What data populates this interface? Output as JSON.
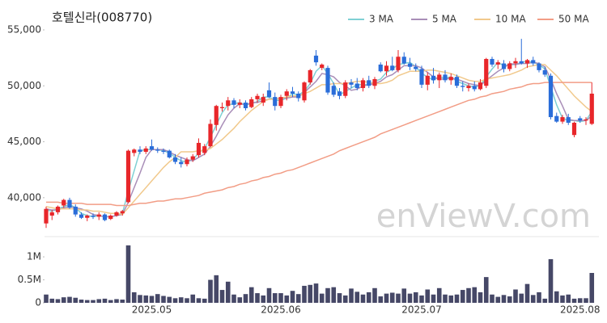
{
  "chart_data": [
    {
      "type": "candlestick",
      "title": "호텔신라(008770)",
      "watermark": "enViewV.com",
      "up_color": "#e8262a",
      "down_color": "#2a6dd9",
      "ylim": [
        37100,
        55650
      ],
      "yticks": [
        {
          "value": 40000,
          "label": "40,000"
        },
        {
          "value": 45000,
          "label": "45,000"
        },
        {
          "value": 50000,
          "label": "50,000"
        },
        {
          "value": 55000,
          "label": "55,000"
        }
      ],
      "open": [
        37700,
        38400,
        38700,
        39300,
        39800,
        39200,
        38500,
        38200,
        38400,
        38300,
        38500,
        38100,
        38400,
        38600,
        39600,
        44000,
        44300,
        44100,
        44600,
        44300,
        44200,
        44200,
        43600,
        43200,
        43000,
        43400,
        43800,
        44000,
        44600,
        46500,
        48000,
        48200,
        48700,
        48300,
        48500,
        48100,
        48800,
        48500,
        49600,
        49000,
        48200,
        49100,
        49500,
        49300,
        48700,
        50300,
        52700,
        51600,
        51600,
        50000,
        49500,
        49100,
        50300,
        50200,
        49800,
        50500,
        50000,
        51900,
        51300,
        51800,
        51400,
        52600,
        52000,
        51700,
        51500,
        50100,
        50900,
        50500,
        51000,
        50500,
        50800,
        50000,
        49800,
        50000,
        49700,
        50000,
        52400,
        51900,
        52000,
        51500,
        52000,
        52200,
        52000,
        52300,
        52000,
        51400,
        50900,
        47300,
        46800,
        47200,
        45600,
        47100,
        46900,
        46600
      ],
      "high": [
        39200,
        38900,
        39300,
        39900,
        40000,
        39400,
        38700,
        38500,
        38600,
        38700,
        38600,
        38500,
        38800,
        38900,
        44300,
        44400,
        44600,
        44600,
        45200,
        44500,
        44400,
        44300,
        43900,
        43600,
        43600,
        43900,
        45300,
        44800,
        47000,
        48300,
        48500,
        49000,
        48900,
        48800,
        48700,
        49000,
        49300,
        49300,
        50300,
        49400,
        49200,
        49700,
        49900,
        49500,
        50400,
        51500,
        53200,
        52000,
        51800,
        50300,
        49800,
        50500,
        50600,
        50700,
        50700,
        50900,
        50800,
        52100,
        52200,
        52600,
        53200,
        53000,
        52500,
        52000,
        51800,
        51200,
        51600,
        51200,
        51400,
        51100,
        51000,
        50400,
        50200,
        50400,
        50600,
        52500,
        52600,
        52300,
        52300,
        52200,
        52500,
        54200,
        52400,
        52600,
        52100,
        51700,
        51100,
        47600,
        47400,
        47500,
        46800,
        47300,
        47200,
        50300
      ],
      "low": [
        37300,
        38000,
        38500,
        39100,
        39000,
        38300,
        38100,
        37900,
        38100,
        38000,
        37900,
        38000,
        38300,
        38400,
        39500,
        43700,
        43900,
        43900,
        44200,
        44000,
        43900,
        43500,
        43000,
        42700,
        42800,
        43200,
        43600,
        43800,
        44500,
        46000,
        47700,
        47800,
        48000,
        48000,
        47800,
        48000,
        48500,
        48200,
        48900,
        47800,
        48000,
        48700,
        49000,
        48600,
        48500,
        50100,
        51800,
        51400,
        49200,
        49000,
        48800,
        48900,
        49800,
        49600,
        49500,
        49800,
        49700,
        51200,
        50900,
        51300,
        51200,
        51900,
        51400,
        51300,
        49800,
        49600,
        50200,
        49800,
        50300,
        50100,
        49800,
        49500,
        49500,
        49500,
        49600,
        49800,
        51700,
        51500,
        51200,
        51300,
        51600,
        51900,
        51600,
        51800,
        51200,
        50800,
        47000,
        46700,
        46600,
        46500,
        45400,
        46700,
        46500,
        46500
      ],
      "close": [
        39000,
        38700,
        39200,
        39800,
        39100,
        38500,
        38200,
        38400,
        38300,
        38500,
        38000,
        38400,
        38700,
        38800,
        44200,
        44300,
        44100,
        44400,
        44300,
        44200,
        44100,
        43600,
        43200,
        43000,
        43400,
        43700,
        44900,
        44600,
        46600,
        48200,
        48100,
        48700,
        48300,
        48500,
        48000,
        48800,
        49100,
        49000,
        49000,
        48200,
        49000,
        49500,
        49300,
        48900,
        50300,
        51400,
        52100,
        51900,
        49400,
        49200,
        49100,
        50300,
        50100,
        49800,
        50500,
        50000,
        50600,
        51300,
        51800,
        51400,
        52600,
        52000,
        51700,
        51500,
        50100,
        50900,
        50500,
        51000,
        50500,
        50800,
        50000,
        49900,
        50000,
        49700,
        50300,
        52400,
        51900,
        52100,
        51500,
        52000,
        52200,
        52000,
        52300,
        52000,
        51400,
        51000,
        47200,
        46800,
        47200,
        46700,
        46700,
        46900,
        47000,
        49300
      ],
      "series": [
        {
          "name": "3 MA",
          "color": "#7fd0d4",
          "values": [
            38900,
            38800,
            39000,
            39200,
            39400,
            39100,
            38600,
            38400,
            38300,
            38400,
            38300,
            38300,
            38400,
            38600,
            40600,
            42400,
            44200,
            44300,
            44300,
            44300,
            44200,
            44000,
            43600,
            43300,
            43200,
            43400,
            44000,
            44400,
            45400,
            46500,
            47600,
            48300,
            48400,
            48500,
            48300,
            48400,
            48600,
            49000,
            49000,
            48700,
            48700,
            48900,
            49300,
            49200,
            49500,
            50200,
            51300,
            51800,
            51100,
            50200,
            49200,
            49500,
            49800,
            50100,
            50100,
            50100,
            50400,
            50600,
            51200,
            51500,
            51900,
            52000,
            52100,
            51700,
            51100,
            50800,
            50500,
            50800,
            50700,
            50800,
            50400,
            50200,
            50000,
            49900,
            50000,
            50800,
            51500,
            52100,
            51800,
            51900,
            51900,
            52100,
            52200,
            52100,
            51900,
            51500,
            49900,
            48300,
            47100,
            46900,
            46900,
            46800,
            46900,
            47700
          ]
        },
        {
          "name": "5 MA",
          "color": "#a98eb8",
          "values": [
            39000,
            38900,
            38900,
            39100,
            39200,
            39100,
            39000,
            38800,
            38500,
            38400,
            38300,
            38300,
            38400,
            38500,
            39600,
            40900,
            42200,
            43600,
            44300,
            44300,
            44300,
            44100,
            43800,
            43600,
            43400,
            43300,
            43600,
            43900,
            44600,
            45500,
            46500,
            47400,
            48000,
            48400,
            48300,
            48500,
            48500,
            48700,
            48800,
            48800,
            48900,
            48900,
            49000,
            49000,
            49400,
            49900,
            50400,
            51100,
            51000,
            50800,
            50300,
            50000,
            49600,
            49700,
            50000,
            50100,
            50200,
            50400,
            50800,
            51000,
            51400,
            51800,
            51800,
            51800,
            51600,
            51200,
            50800,
            50600,
            50600,
            50700,
            50600,
            50400,
            50200,
            50100,
            50000,
            50500,
            50900,
            51300,
            51600,
            52000,
            51900,
            52000,
            52000,
            52100,
            52000,
            51700,
            50600,
            49300,
            48200,
            47000,
            46900,
            46900,
            46900,
            47300
          ]
        },
        {
          "name": "10 MA",
          "color": "#f1c98c",
          "values": [
            39200,
            39100,
            39000,
            39000,
            39000,
            39000,
            38900,
            38900,
            38800,
            38800,
            38700,
            38600,
            38600,
            38500,
            39100,
            39700,
            40300,
            40900,
            41500,
            42100,
            42700,
            43200,
            43600,
            44100,
            44100,
            44100,
            44200,
            44200,
            44400,
            44800,
            45200,
            45700,
            46200,
            46800,
            47300,
            47800,
            48200,
            48600,
            48800,
            48800,
            48900,
            49000,
            49100,
            49100,
            49300,
            49500,
            49800,
            50100,
            50100,
            50200,
            50200,
            50200,
            50300,
            50400,
            50400,
            50300,
            50200,
            50200,
            50300,
            50500,
            50900,
            51100,
            51300,
            51300,
            51300,
            51400,
            51400,
            51300,
            51200,
            51100,
            50900,
            50700,
            50500,
            50400,
            50400,
            50600,
            50700,
            50800,
            50900,
            51000,
            51200,
            51400,
            51700,
            51800,
            51900,
            51900,
            51400,
            50900,
            50300,
            49700,
            49100,
            48600,
            48100,
            47700
          ]
        },
        {
          "name": "50 MA",
          "color": "#f29d86",
          "values": [
            39600,
            39600,
            39600,
            39500,
            39500,
            39500,
            39500,
            39400,
            39400,
            39400,
            39400,
            39400,
            39300,
            39300,
            39300,
            39400,
            39500,
            39500,
            39600,
            39700,
            39700,
            39800,
            39900,
            39900,
            40000,
            40100,
            40200,
            40400,
            40500,
            40600,
            40700,
            40900,
            41000,
            41200,
            41300,
            41500,
            41600,
            41800,
            41900,
            42100,
            42200,
            42400,
            42500,
            42700,
            42900,
            43100,
            43300,
            43500,
            43700,
            43900,
            44200,
            44400,
            44600,
            44800,
            45000,
            45200,
            45400,
            45700,
            45900,
            46100,
            46300,
            46500,
            46700,
            46900,
            47100,
            47300,
            47500,
            47700,
            47900,
            48100,
            48300,
            48500,
            48700,
            48800,
            49000,
            49100,
            49300,
            49400,
            49500,
            49700,
            49800,
            49900,
            50100,
            50200,
            50200,
            50300,
            50300,
            50300,
            50300,
            50300,
            50300,
            50300,
            50300,
            50300
          ]
        }
      ]
    },
    {
      "type": "bar",
      "color": "#464867",
      "ylim": [
        0,
        1300000
      ],
      "yticks": [
        0,
        {
          "value": 500000,
          "label": "0.5M"
        },
        {
          "value": 1000000,
          "label": "1M"
        }
      ],
      "categories": [
        null,
        null,
        null,
        null,
        null,
        null,
        null,
        null,
        null,
        null,
        null,
        null,
        null,
        null,
        null,
        null,
        null,
        null,
        "2025.05",
        null,
        null,
        null,
        null,
        null,
        null,
        null,
        null,
        null,
        null,
        null,
        null,
        null,
        null,
        null,
        null,
        null,
        null,
        null,
        null,
        null,
        "2025.06",
        null,
        null,
        null,
        null,
        null,
        null,
        null,
        null,
        null,
        null,
        null,
        null,
        null,
        null,
        null,
        null,
        null,
        null,
        null,
        null,
        null,
        null,
        null,
        "2025.07",
        null,
        null,
        null,
        null,
        null,
        null,
        null,
        null,
        null,
        null,
        null,
        null,
        null,
        null,
        null,
        null,
        null,
        null,
        null,
        null,
        null,
        null,
        null,
        null,
        null,
        null,
        "2025.08",
        null,
        null
      ],
      "values": [
        180000,
        90000,
        80000,
        120000,
        130000,
        110000,
        70000,
        60000,
        60000,
        80000,
        90000,
        60000,
        80000,
        70000,
        1250000,
        230000,
        170000,
        160000,
        150000,
        190000,
        150000,
        130000,
        100000,
        120000,
        100000,
        180000,
        100000,
        90000,
        500000,
        600000,
        280000,
        460000,
        180000,
        120000,
        190000,
        340000,
        210000,
        160000,
        320000,
        210000,
        210000,
        160000,
        260000,
        190000,
        370000,
        390000,
        420000,
        200000,
        320000,
        340000,
        210000,
        160000,
        310000,
        240000,
        180000,
        230000,
        320000,
        140000,
        200000,
        220000,
        200000,
        310000,
        200000,
        230000,
        160000,
        290000,
        180000,
        320000,
        180000,
        160000,
        180000,
        280000,
        320000,
        340000,
        230000,
        560000,
        180000,
        130000,
        170000,
        140000,
        290000,
        200000,
        410000,
        170000,
        230000,
        90000,
        950000,
        250000,
        160000,
        180000,
        90000,
        100000,
        100000,
        650000
      ]
    }
  ]
}
